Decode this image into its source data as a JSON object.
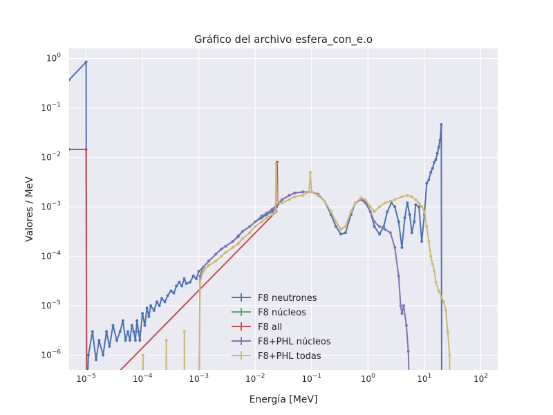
{
  "chart_data": {
    "type": "line",
    "title": "Gráfico del archivo esfera_con_e.o",
    "xlabel": "Energía [MeV]",
    "ylabel": "Valores / MeV",
    "xscale": "log",
    "yscale": "log",
    "xlim": [
      5e-06,
      200
    ],
    "ylim": [
      5e-07,
      1.6
    ],
    "x_ticks": [
      {
        "value": 1e-05,
        "base": "10",
        "exp": "−5"
      },
      {
        "value": 0.0001,
        "base": "10",
        "exp": "−4"
      },
      {
        "value": 0.001,
        "base": "10",
        "exp": "−3"
      },
      {
        "value": 0.01,
        "base": "10",
        "exp": "−2"
      },
      {
        "value": 0.1,
        "base": "10",
        "exp": "−1"
      },
      {
        "value": 1,
        "base": "10",
        "exp": "0"
      },
      {
        "value": 10,
        "base": "10",
        "exp": "1"
      },
      {
        "value": 100,
        "base": "10",
        "exp": "2"
      }
    ],
    "y_ticks": [
      {
        "value": 1e-06,
        "base": "10",
        "exp": "−6"
      },
      {
        "value": 1e-05,
        "base": "10",
        "exp": "−5"
      },
      {
        "value": 0.0001,
        "base": "10",
        "exp": "−4"
      },
      {
        "value": 0.001,
        "base": "10",
        "exp": "−3"
      },
      {
        "value": 0.01,
        "base": "10",
        "exp": "−2"
      },
      {
        "value": 0.1,
        "base": "10",
        "exp": "−1"
      },
      {
        "value": 1,
        "base": "10",
        "exp": "0"
      }
    ],
    "grid": true,
    "legend_position": "lower-center",
    "series": [
      {
        "name": "F8 neutrones",
        "color": "#4c72b0",
        "points": [
          [
            5e-06,
            0.37
          ],
          [
            1e-05,
            0.85
          ],
          [
            1.02e-05,
            1e-07
          ],
          [
            1.1e-05,
            1e-06
          ],
          [
            1.3e-05,
            3e-06
          ],
          [
            1.5e-05,
            8e-07
          ],
          [
            1.7e-05,
            2e-06
          ],
          [
            2e-05,
            1e-06
          ],
          [
            2.3e-05,
            3e-06
          ],
          [
            2.6e-05,
            1.5e-06
          ],
          [
            3e-05,
            4e-06
          ],
          [
            3.5e-05,
            2e-06
          ],
          [
            4e-05,
            3e-06
          ],
          [
            4.5e-05,
            5e-06
          ],
          [
            5e-05,
            2e-06
          ],
          [
            5.5e-05,
            3e-06
          ],
          [
            6e-05,
            2e-06
          ],
          [
            6.5e-05,
            4e-06
          ],
          [
            7e-05,
            3e-06
          ],
          [
            7.5e-05,
            2e-06
          ],
          [
            8e-05,
            5e-06
          ],
          [
            8.5e-05,
            3e-06
          ],
          [
            9e-05,
            2e-06
          ],
          [
            0.0001,
            7e-06
          ],
          [
            0.00011,
            4e-06
          ],
          [
            0.00012,
            9e-06
          ],
          [
            0.00013,
            6e-06
          ],
          [
            0.00014,
            1e-05
          ],
          [
            0.00016,
            8e-06
          ],
          [
            0.00018,
            1.2e-05
          ],
          [
            0.0002,
            1e-05
          ],
          [
            0.00022,
            1.4e-05
          ],
          [
            0.00025,
            1.2e-05
          ],
          [
            0.00028,
            1.6e-05
          ],
          [
            0.00032,
            2e-05
          ],
          [
            0.00036,
            1.8e-05
          ],
          [
            0.0004,
            2.5e-05
          ],
          [
            0.00045,
            3e-05
          ],
          [
            0.0005,
            2.5e-05
          ],
          [
            0.00055,
            3.5e-05
          ],
          [
            0.0006,
            2.8e-05
          ],
          [
            0.0007,
            3e-05
          ],
          [
            0.0008,
            4e-05
          ],
          [
            0.0009,
            3.5e-05
          ],
          [
            0.001,
            5e-05
          ],
          [
            0.0012,
            6e-05
          ],
          [
            0.0015,
            8e-05
          ],
          [
            0.002,
            0.00011
          ],
          [
            0.0025,
            0.00014
          ],
          [
            0.003,
            0.00016
          ],
          [
            0.004,
            0.0002
          ],
          [
            0.005,
            0.00025
          ],
          [
            0.006,
            0.00032
          ],
          [
            0.008,
            0.0004
          ],
          [
            0.01,
            0.0005
          ],
          [
            0.013,
            0.0006
          ],
          [
            0.016,
            0.0007
          ],
          [
            0.02,
            0.0008
          ],
          [
            0.024,
            0.001
          ],
          [
            0.03,
            0.0014
          ],
          [
            0.04,
            0.0017
          ],
          [
            0.05,
            0.0019
          ],
          [
            0.07,
            0.002
          ],
          [
            0.1,
            0.002
          ],
          [
            0.13,
            0.0018
          ],
          [
            0.17,
            0.0013
          ],
          [
            0.22,
            0.0007
          ],
          [
            0.27,
            0.0004
          ],
          [
            0.33,
            0.00028
          ],
          [
            0.4,
            0.0003
          ],
          [
            0.5,
            0.0007
          ],
          [
            0.6,
            0.0012
          ],
          [
            0.75,
            0.0015
          ],
          [
            0.9,
            0.0013
          ],
          [
            1.1,
            0.0008
          ],
          [
            1.3,
            0.0004
          ],
          [
            1.6,
            0.00028
          ],
          [
            1.9,
            0.0004
          ],
          [
            2.2,
            0.0008
          ],
          [
            2.6,
            0.0012
          ],
          [
            3,
            0.001
          ],
          [
            3.5,
            0.0005
          ],
          [
            4,
            0.00015
          ],
          [
            4.5,
            0.0006
          ],
          [
            5,
            0.0012
          ],
          [
            5.5,
            0.0007
          ],
          [
            6,
            0.0003
          ],
          [
            6.6,
            0.0005
          ],
          [
            7,
            0.0011
          ],
          [
            8,
            0.001
          ],
          [
            9,
            0.0002
          ],
          [
            10,
            0.0007
          ],
          [
            11,
            0.003
          ],
          [
            12,
            0.0035
          ],
          [
            13,
            0.005
          ],
          [
            14,
            0.006
          ],
          [
            15,
            0.008
          ],
          [
            16,
            0.009
          ],
          [
            17,
            0.012
          ],
          [
            18,
            0.016
          ],
          [
            19,
            0.022
          ],
          [
            20,
            0.046
          ],
          [
            20.3,
            1e-07
          ]
        ]
      },
      {
        "name": "F8 núcleos",
        "color": "#55a868",
        "points": []
      },
      {
        "name": "F8 all",
        "color": "#c44e52",
        "points": [
          [
            5e-06,
            0.0145
          ],
          [
            1e-05,
            0.0145
          ],
          [
            1.02e-05,
            1e-07
          ],
          [
            0.0235,
            0.0008
          ],
          [
            0.024,
            0.0075
          ],
          [
            0.0245,
            0.008
          ],
          [
            0.025,
            0.0012
          ]
        ]
      },
      {
        "name": "F8+PHL núcleos",
        "color": "#8172b2",
        "points": [
          [
            0.001,
            1e-07
          ],
          [
            0.00105,
            4e-05
          ],
          [
            0.0012,
            6e-05
          ],
          [
            0.0015,
            8e-05
          ],
          [
            0.002,
            0.00011
          ],
          [
            0.0025,
            0.00014
          ],
          [
            0.003,
            0.00016
          ],
          [
            0.004,
            0.0002
          ],
          [
            0.005,
            0.00026
          ],
          [
            0.006,
            0.00032
          ],
          [
            0.008,
            0.0004
          ],
          [
            0.01,
            0.0005
          ],
          [
            0.013,
            0.00065
          ],
          [
            0.016,
            0.00075
          ],
          [
            0.02,
            0.0009
          ],
          [
            0.024,
            0.0011
          ],
          [
            0.03,
            0.0014
          ],
          [
            0.04,
            0.0017
          ],
          [
            0.05,
            0.0019
          ],
          [
            0.07,
            0.002
          ],
          [
            0.1,
            0.002
          ],
          [
            0.13,
            0.0018
          ],
          [
            0.17,
            0.0013
          ],
          [
            0.22,
            0.0008
          ],
          [
            0.27,
            0.0005
          ],
          [
            0.33,
            0.00035
          ],
          [
            0.4,
            0.0004
          ],
          [
            0.5,
            0.0008
          ],
          [
            0.6,
            0.0012
          ],
          [
            0.75,
            0.0014
          ],
          [
            0.9,
            0.0012
          ],
          [
            1.1,
            0.0008
          ],
          [
            1.3,
            0.0005
          ],
          [
            1.6,
            0.0004
          ],
          [
            2,
            0.00035
          ],
          [
            2.5,
            0.0003
          ],
          [
            3,
            0.00015
          ],
          [
            3.5,
            4e-05
          ],
          [
            3.8,
            1e-05
          ],
          [
            4,
            7e-06
          ],
          [
            4.3,
            1e-05
          ],
          [
            4.8,
            4e-06
          ],
          [
            5.2,
            1.2e-06
          ],
          [
            5.5,
            1e-07
          ]
        ]
      },
      {
        "name": "F8+PHL todas",
        "color": "#ccb974",
        "points": [
          [
            0.0001,
            1e-07
          ],
          [
            0.000102,
            1e-06
          ],
          [
            0.000105,
            1e-07
          ],
          [
            0.00026,
            1e-07
          ],
          [
            0.000265,
            2e-06
          ],
          [
            0.00027,
            1e-07
          ],
          [
            0.00055,
            1e-07
          ],
          [
            0.000555,
            3e-06
          ],
          [
            0.00056,
            1e-07
          ],
          [
            0.001,
            1e-07
          ],
          [
            0.00105,
            3e-05
          ],
          [
            0.0012,
            5e-05
          ],
          [
            0.0015,
            6.5e-05
          ],
          [
            0.002,
            8e-05
          ],
          [
            0.0025,
            0.0001
          ],
          [
            0.003,
            0.00012
          ],
          [
            0.004,
            0.00015
          ],
          [
            0.005,
            0.00018
          ],
          [
            0.006,
            0.00023
          ],
          [
            0.008,
            0.0003
          ],
          [
            0.01,
            0.0004
          ],
          [
            0.013,
            0.0005
          ],
          [
            0.016,
            0.0006
          ],
          [
            0.02,
            0.0007
          ],
          [
            0.023,
            0.0008
          ],
          [
            0.0235,
            0.0075
          ],
          [
            0.0245,
            0.0012
          ],
          [
            0.03,
            0.0012
          ],
          [
            0.04,
            0.0014
          ],
          [
            0.05,
            0.0016
          ],
          [
            0.07,
            0.0017
          ],
          [
            0.09,
            0.002
          ],
          [
            0.095,
            0.005
          ],
          [
            0.1,
            0.002
          ],
          [
            0.13,
            0.0017
          ],
          [
            0.17,
            0.0013
          ],
          [
            0.22,
            0.0008
          ],
          [
            0.27,
            0.0005
          ],
          [
            0.33,
            0.00035
          ],
          [
            0.4,
            0.0004
          ],
          [
            0.5,
            0.0008
          ],
          [
            0.6,
            0.0012
          ],
          [
            0.75,
            0.0015
          ],
          [
            0.9,
            0.0014
          ],
          [
            1.1,
            0.001
          ],
          [
            1.3,
            0.0008
          ],
          [
            1.6,
            0.001
          ],
          [
            2,
            0.0012
          ],
          [
            2.5,
            0.0013
          ],
          [
            3,
            0.0014
          ],
          [
            4,
            0.0016
          ],
          [
            5,
            0.0017
          ],
          [
            6,
            0.0016
          ],
          [
            7,
            0.0014
          ],
          [
            8,
            0.0012
          ],
          [
            9,
            0.001
          ],
          [
            10,
            0.0008
          ],
          [
            11,
            0.0004
          ],
          [
            12,
            0.0002
          ],
          [
            13,
            0.0001
          ],
          [
            14,
            7e-05
          ],
          [
            15,
            5e-05
          ],
          [
            16,
            3e-05
          ],
          [
            18,
            2e-05
          ],
          [
            20,
            1.5e-05
          ],
          [
            22,
            1.2e-05
          ],
          [
            24,
            8e-06
          ],
          [
            26,
            3e-06
          ],
          [
            28,
            1e-06
          ],
          [
            28.5,
            1e-07
          ]
        ]
      }
    ]
  }
}
